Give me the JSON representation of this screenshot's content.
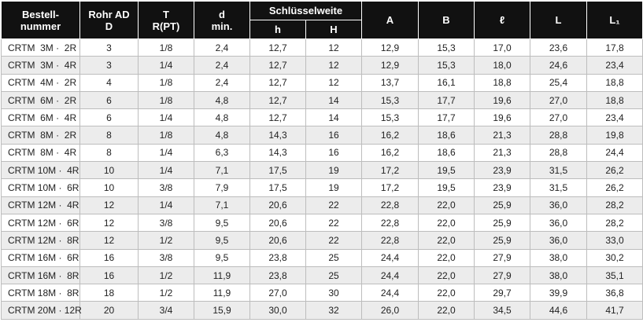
{
  "table": {
    "header": {
      "columns": [
        {
          "lines": [
            "Bestell-",
            "nummer"
          ]
        },
        {
          "lines": [
            "Rohr AD",
            "D"
          ]
        },
        {
          "lines": [
            "T",
            "R(PT)"
          ]
        },
        {
          "lines": [
            "d",
            "min."
          ]
        },
        {
          "group": "Schlüsselweite",
          "sub": [
            "h",
            "H"
          ]
        },
        {
          "lines": [
            "A"
          ]
        },
        {
          "lines": [
            "B"
          ]
        },
        {
          "lines": [
            "ℓ"
          ]
        },
        {
          "lines": [
            "L"
          ]
        },
        {
          "lines": [
            "L₁"
          ]
        }
      ]
    },
    "rows": [
      [
        "CRTM  3M ·  2R",
        "3",
        "1/8",
        "2,4",
        "12,7",
        "12",
        "12,9",
        "15,3",
        "17,0",
        "23,6",
        "17,8"
      ],
      [
        "CRTM  3M ·  4R",
        "3",
        "1/4",
        "2,4",
        "12,7",
        "12",
        "12,9",
        "15,3",
        "18,0",
        "24,6",
        "23,4"
      ],
      [
        "CRTM  4M ·  2R",
        "4",
        "1/8",
        "2,4",
        "12,7",
        "12",
        "13,7",
        "16,1",
        "18,8",
        "25,4",
        "18,8"
      ],
      [
        "CRTM  6M ·  2R",
        "6",
        "1/8",
        "4,8",
        "12,7",
        "14",
        "15,3",
        "17,7",
        "19,6",
        "27,0",
        "18,8"
      ],
      [
        "CRTM  6M ·  4R",
        "6",
        "1/4",
        "4,8",
        "12,7",
        "14",
        "15,3",
        "17,7",
        "19,6",
        "27,0",
        "23,4"
      ],
      [
        "CRTM  8M ·  2R",
        "8",
        "1/8",
        "4,8",
        "14,3",
        "16",
        "16,2",
        "18,6",
        "21,3",
        "28,8",
        "19,8"
      ],
      [
        "CRTM  8M ·  4R",
        "8",
        "1/4",
        "6,3",
        "14,3",
        "16",
        "16,2",
        "18,6",
        "21,3",
        "28,8",
        "24,4"
      ],
      [
        "CRTM 10M ·  4R",
        "10",
        "1/4",
        "7,1",
        "17,5",
        "19",
        "17,2",
        "19,5",
        "23,9",
        "31,5",
        "26,2"
      ],
      [
        "CRTM 10M ·  6R",
        "10",
        "3/8",
        "7,9",
        "17,5",
        "19",
        "17,2",
        "19,5",
        "23,9",
        "31,5",
        "26,2"
      ],
      [
        "CRTM 12M ·  4R",
        "12",
        "1/4",
        "7,1",
        "20,6",
        "22",
        "22,8",
        "22,0",
        "25,9",
        "36,0",
        "28,2"
      ],
      [
        "CRTM 12M ·  6R",
        "12",
        "3/8",
        "9,5",
        "20,6",
        "22",
        "22,8",
        "22,0",
        "25,9",
        "36,0",
        "28,2"
      ],
      [
        "CRTM 12M ·  8R",
        "12",
        "1/2",
        "9,5",
        "20,6",
        "22",
        "22,8",
        "22,0",
        "25,9",
        "36,0",
        "33,0"
      ],
      [
        "CRTM 16M ·  6R",
        "16",
        "3/8",
        "9,5",
        "23,8",
        "25",
        "24,4",
        "22,0",
        "27,9",
        "38,0",
        "30,2"
      ],
      [
        "CRTM 16M ·  8R",
        "16",
        "1/2",
        "11,9",
        "23,8",
        "25",
        "24,4",
        "22,0",
        "27,9",
        "38,0",
        "35,1"
      ],
      [
        "CRTM 18M ·  8R",
        "18",
        "1/2",
        "11,9",
        "27,0",
        "30",
        "24,4",
        "22,0",
        "29,7",
        "39,9",
        "36,8"
      ],
      [
        "CRTM 20M · 12R",
        "20",
        "3/4",
        "15,9",
        "30,0",
        "32",
        "26,0",
        "22,0",
        "34,5",
        "44,6",
        "41,7"
      ]
    ]
  }
}
